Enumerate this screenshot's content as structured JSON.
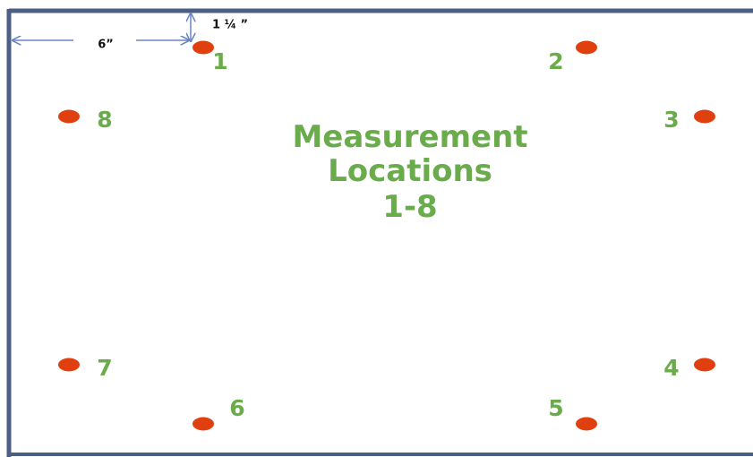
{
  "title": [
    "Measurement",
    "Locations",
    "1-8"
  ],
  "dimensions": {
    "top_offset": "1 ¼ ”",
    "side_offset": "6”"
  },
  "points": [
    {
      "label": "1"
    },
    {
      "label": "2"
    },
    {
      "label": "3"
    },
    {
      "label": "4"
    },
    {
      "label": "5"
    },
    {
      "label": "6"
    },
    {
      "label": "7"
    },
    {
      "label": "8"
    }
  ]
}
